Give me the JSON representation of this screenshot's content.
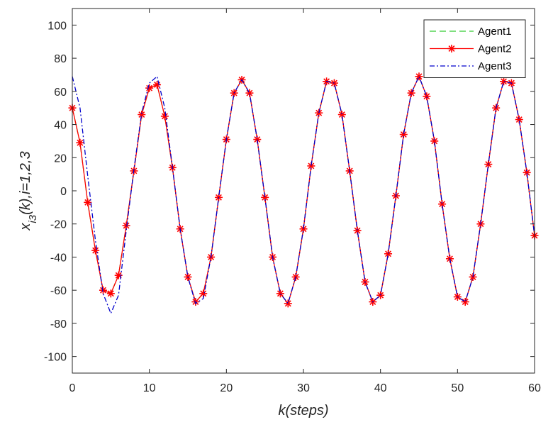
{
  "chart_data": {
    "type": "line",
    "xlabel": "k(steps)",
    "ylabel": "x_{i3}(k),i=1,2,3",
    "xlim": [
      0,
      60
    ],
    "ylim": [
      -110,
      110
    ],
    "xticks": [
      0,
      10,
      20,
      30,
      40,
      50,
      60
    ],
    "yticks": [
      -100,
      -80,
      -60,
      -40,
      -20,
      0,
      20,
      40,
      60,
      80,
      100
    ],
    "grid": false,
    "legend_position": "top-right",
    "x": [
      0,
      1,
      2,
      3,
      4,
      5,
      6,
      7,
      8,
      9,
      10,
      11,
      12,
      13,
      14,
      15,
      16,
      17,
      18,
      19,
      20,
      21,
      22,
      23,
      24,
      25,
      26,
      27,
      28,
      29,
      30,
      31,
      32,
      33,
      34,
      35,
      36,
      37,
      38,
      39,
      40,
      41,
      42,
      43,
      44,
      45,
      46,
      47,
      48,
      49,
      50,
      51,
      52,
      53,
      54,
      55,
      56,
      57,
      58,
      59,
      60
    ],
    "series": [
      {
        "name": "Agent1",
        "color": "#33cc33",
        "style": "dashed",
        "marker": "none",
        "values": [
          50,
          29,
          -7,
          -36,
          -60,
          -62,
          -51,
          -21,
          12,
          46,
          62,
          64,
          45,
          14,
          -23,
          -52,
          -67,
          -62,
          -40,
          -4,
          31,
          59,
          67,
          59,
          31,
          -4,
          -40,
          -62,
          -68,
          -52,
          -23,
          15,
          47,
          66,
          65,
          46,
          12,
          -24,
          -55,
          -67,
          -63,
          -38,
          -3,
          34,
          59,
          69,
          57,
          30,
          -8,
          -41,
          -64,
          -67,
          -52,
          -20,
          16,
          50,
          66,
          65,
          43,
          11,
          -27
        ]
      },
      {
        "name": "Agent2",
        "color": "#ff0000",
        "style": "solid",
        "marker": "asterisk",
        "values": [
          50,
          29,
          -7,
          -36,
          -60,
          -62,
          -51,
          -21,
          12,
          46,
          62,
          64,
          45,
          14,
          -23,
          -52,
          -67,
          -62,
          -40,
          -4,
          31,
          59,
          67,
          59,
          31,
          -4,
          -40,
          -62,
          -68,
          -52,
          -23,
          15,
          47,
          66,
          65,
          46,
          12,
          -24,
          -55,
          -67,
          -63,
          -38,
          -3,
          34,
          59,
          69,
          57,
          30,
          -8,
          -41,
          -64,
          -67,
          -52,
          -20,
          16,
          50,
          66,
          65,
          43,
          11,
          -27
        ]
      },
      {
        "name": "Agent3",
        "color": "#0000cc",
        "style": "dashdot",
        "marker": "none",
        "values": [
          69,
          50,
          9,
          -30,
          -62,
          -74,
          -63,
          -24,
          13,
          47,
          65,
          69,
          50,
          14,
          -23,
          -52,
          -68,
          -65,
          -40,
          -4,
          31,
          59,
          67,
          59,
          31,
          -4,
          -40,
          -62,
          -68,
          -52,
          -23,
          15,
          47,
          66,
          65,
          46,
          12,
          -24,
          -55,
          -67,
          -63,
          -38,
          -3,
          34,
          59,
          69,
          57,
          30,
          -8,
          -41,
          -64,
          -67,
          -52,
          -20,
          16,
          50,
          66,
          65,
          43,
          11,
          -27
        ]
      }
    ]
  }
}
